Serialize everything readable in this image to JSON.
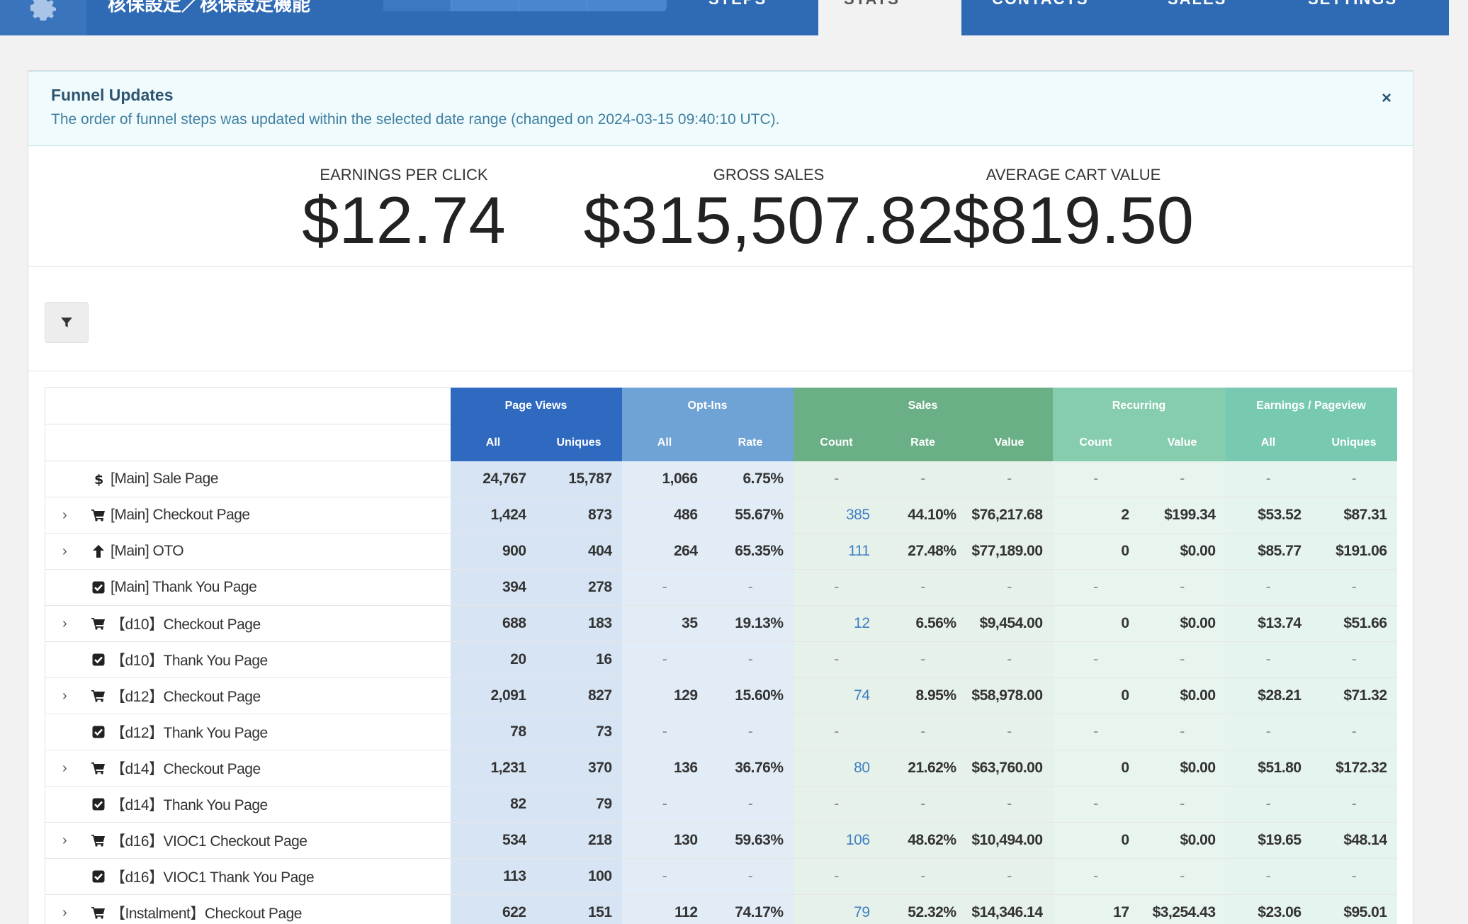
{
  "nav": {
    "funnel_name": "核保設定／核保設定機能",
    "tabs": [
      "STEPS",
      "STATS",
      "CONTACTS",
      "SALES",
      "SETTINGS"
    ],
    "active_tab": "STATS"
  },
  "alert": {
    "title": "Funnel Updates",
    "text": "The order of funnel steps was updated within the selected date range (changed on 2024-03-15 09:40:10 UTC).",
    "close": "×"
  },
  "kpis": [
    {
      "label": "EARNINGS PER CLICK",
      "value": "$12.74"
    },
    {
      "label": "GROSS SALES",
      "value": "$315,507.82"
    },
    {
      "label": "AVERAGE CART VALUE",
      "value": "$819.50"
    }
  ],
  "table": {
    "groups": [
      "Page Views",
      "Opt-Ins",
      "Sales",
      "Recurring",
      "Earnings / Pageview"
    ],
    "subheaders": [
      "All",
      "Uniques",
      "All",
      "Rate",
      "Count",
      "Rate",
      "Value",
      "Count",
      "Value",
      "All",
      "Uniques"
    ],
    "rows": [
      {
        "icon": "dollar-icon",
        "expand": false,
        "name": "[Main] Sale Page",
        "pv_all": "24,767",
        "pv_uniq": "15,787",
        "oi_all": "1,066",
        "oi_rate": "6.75%",
        "sa_count": "-",
        "sa_rate": "-",
        "sa_value": "-",
        "re_count": "-",
        "re_value": "-",
        "ep_all": "-",
        "ep_uniq": "-"
      },
      {
        "icon": "cart-icon",
        "expand": true,
        "name": "[Main] Checkout Page",
        "pv_all": "1,424",
        "pv_uniq": "873",
        "oi_all": "486",
        "oi_rate": "55.67%",
        "sa_count": "385",
        "sa_rate": "44.10%",
        "sa_value": "$76,217.68",
        "re_count": "2",
        "re_value": "$199.34",
        "ep_all": "$53.52",
        "ep_uniq": "$87.31"
      },
      {
        "icon": "arrow-up-icon",
        "expand": true,
        "name": "[Main] OTO",
        "pv_all": "900",
        "pv_uniq": "404",
        "oi_all": "264",
        "oi_rate": "65.35%",
        "sa_count": "111",
        "sa_rate": "27.48%",
        "sa_value": "$77,189.00",
        "re_count": "0",
        "re_value": "$0.00",
        "ep_all": "$85.77",
        "ep_uniq": "$191.06"
      },
      {
        "icon": "checkbox-icon",
        "expand": false,
        "name": "[Main] Thank You Page",
        "pv_all": "394",
        "pv_uniq": "278",
        "oi_all": "-",
        "oi_rate": "-",
        "sa_count": "-",
        "sa_rate": "-",
        "sa_value": "-",
        "re_count": "-",
        "re_value": "-",
        "ep_all": "-",
        "ep_uniq": "-"
      },
      {
        "icon": "cart-icon",
        "expand": true,
        "name": "【d10】Checkout Page",
        "pv_all": "688",
        "pv_uniq": "183",
        "oi_all": "35",
        "oi_rate": "19.13%",
        "sa_count": "12",
        "sa_rate": "6.56%",
        "sa_value": "$9,454.00",
        "re_count": "0",
        "re_value": "$0.00",
        "ep_all": "$13.74",
        "ep_uniq": "$51.66"
      },
      {
        "icon": "checkbox-icon",
        "expand": false,
        "name": "【d10】Thank You Page",
        "pv_all": "20",
        "pv_uniq": "16",
        "oi_all": "-",
        "oi_rate": "-",
        "sa_count": "-",
        "sa_rate": "-",
        "sa_value": "-",
        "re_count": "-",
        "re_value": "-",
        "ep_all": "-",
        "ep_uniq": "-"
      },
      {
        "icon": "cart-icon",
        "expand": true,
        "name": "【d12】Checkout Page",
        "pv_all": "2,091",
        "pv_uniq": "827",
        "oi_all": "129",
        "oi_rate": "15.60%",
        "sa_count": "74",
        "sa_rate": "8.95%",
        "sa_value": "$58,978.00",
        "re_count": "0",
        "re_value": "$0.00",
        "ep_all": "$28.21",
        "ep_uniq": "$71.32"
      },
      {
        "icon": "checkbox-icon",
        "expand": false,
        "name": "【d12】Thank You Page",
        "pv_all": "78",
        "pv_uniq": "73",
        "oi_all": "-",
        "oi_rate": "-",
        "sa_count": "-",
        "sa_rate": "-",
        "sa_value": "-",
        "re_count": "-",
        "re_value": "-",
        "ep_all": "-",
        "ep_uniq": "-"
      },
      {
        "icon": "cart-icon",
        "expand": true,
        "name": "【d14】Checkout Page",
        "pv_all": "1,231",
        "pv_uniq": "370",
        "oi_all": "136",
        "oi_rate": "36.76%",
        "sa_count": "80",
        "sa_rate": "21.62%",
        "sa_value": "$63,760.00",
        "re_count": "0",
        "re_value": "$0.00",
        "ep_all": "$51.80",
        "ep_uniq": "$172.32"
      },
      {
        "icon": "checkbox-icon",
        "expand": false,
        "name": "【d14】Thank You Page",
        "pv_all": "82",
        "pv_uniq": "79",
        "oi_all": "-",
        "oi_rate": "-",
        "sa_count": "-",
        "sa_rate": "-",
        "sa_value": "-",
        "re_count": "-",
        "re_value": "-",
        "ep_all": "-",
        "ep_uniq": "-"
      },
      {
        "icon": "cart-icon",
        "expand": true,
        "name": "【d16】VIOC1 Checkout Page",
        "pv_all": "534",
        "pv_uniq": "218",
        "oi_all": "130",
        "oi_rate": "59.63%",
        "sa_count": "106",
        "sa_rate": "48.62%",
        "sa_value": "$10,494.00",
        "re_count": "0",
        "re_value": "$0.00",
        "ep_all": "$19.65",
        "ep_uniq": "$48.14"
      },
      {
        "icon": "checkbox-icon",
        "expand": false,
        "name": "【d16】VIOC1 Thank You Page",
        "pv_all": "113",
        "pv_uniq": "100",
        "oi_all": "-",
        "oi_rate": "-",
        "sa_count": "-",
        "sa_rate": "-",
        "sa_value": "-",
        "re_count": "-",
        "re_value": "-",
        "ep_all": "-",
        "ep_uniq": "-"
      },
      {
        "icon": "cart-icon",
        "expand": true,
        "name": "【Instalment】Checkout Page",
        "pv_all": "622",
        "pv_uniq": "151",
        "oi_all": "112",
        "oi_rate": "74.17%",
        "sa_count": "79",
        "sa_rate": "52.32%",
        "sa_value": "$14,346.14",
        "re_count": "17",
        "re_value": "$3,254.43",
        "ep_all": "$23.06",
        "ep_uniq": "$95.01"
      }
    ]
  }
}
